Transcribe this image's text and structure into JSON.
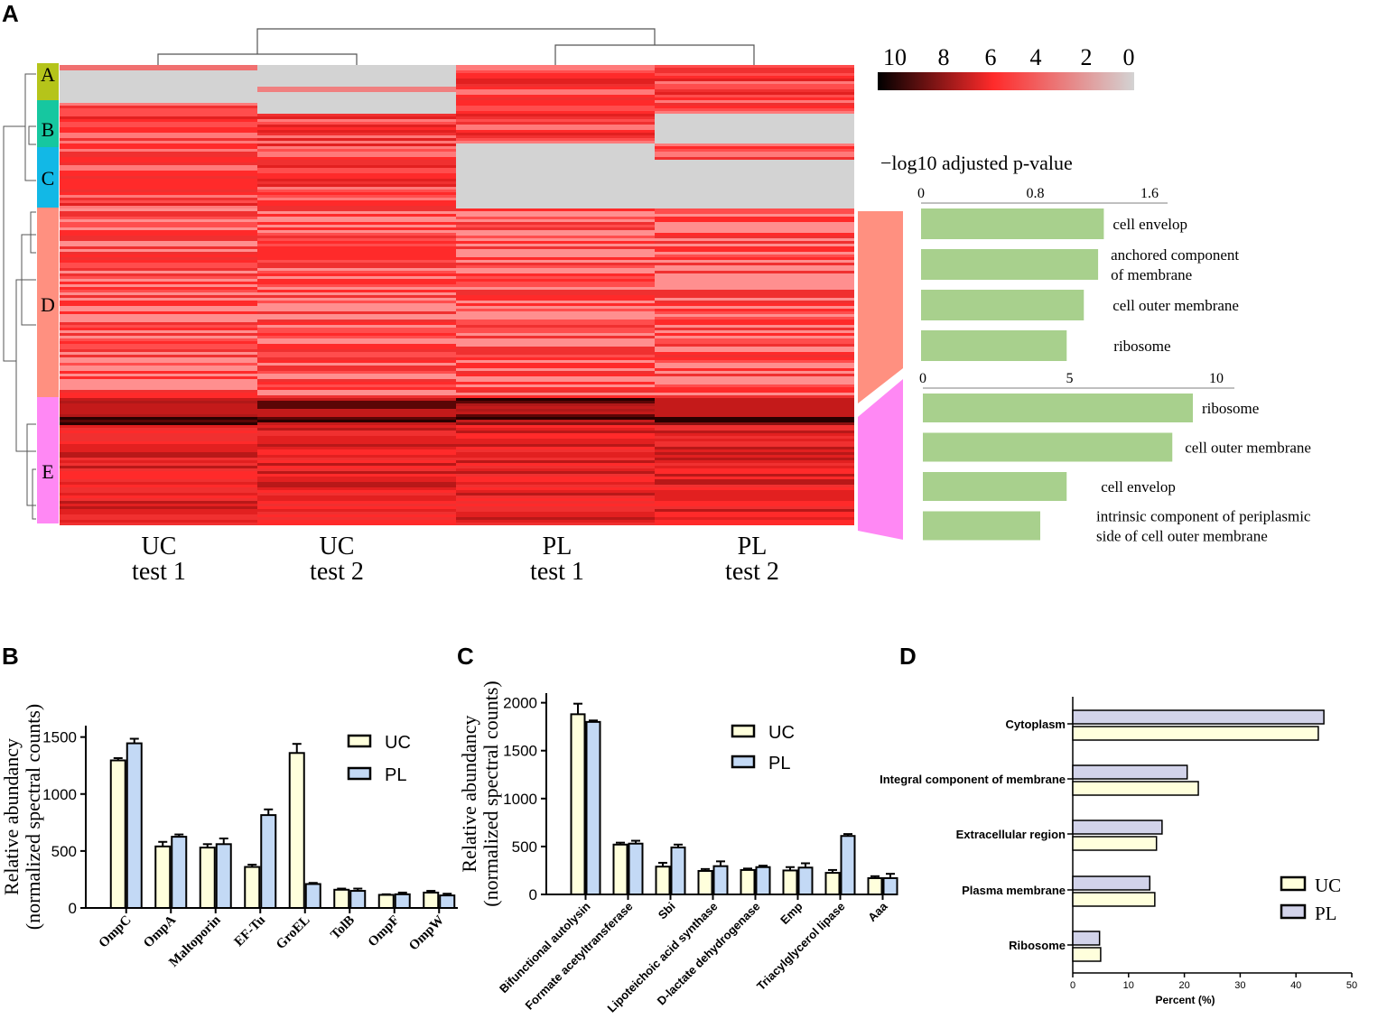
{
  "panel_labels": {
    "a": "A",
    "b": "B",
    "c": "C",
    "d": "D"
  },
  "colors": {
    "heat_dark": "#000000",
    "heat_mid": "#ff2a2a",
    "heat_light": "#d3d3d3",
    "go_bar": "#a8d08d",
    "cluster_A": "#b5c41a",
    "cluster_B": "#16c7a0",
    "cluster_C": "#12b8e6",
    "cluster_D": "#ff9080",
    "cluster_E": "#ff88f4",
    "uc_fill": "#ffffdc",
    "pl_fill_bc": "#c3d9f5",
    "pl_fill_d": "#d2d3ea"
  },
  "chart_data": [
    {
      "id": "A_heatmap",
      "type": "heatmap",
      "columns": [
        {
          "line1": "UC",
          "line2": "test 1"
        },
        {
          "line1": "UC",
          "line2": "test 2"
        },
        {
          "line1": "PL",
          "line2": "test 1"
        },
        {
          "line1": "PL",
          "line2": "test 2"
        }
      ],
      "clusters": [
        "A",
        "B",
        "C",
        "D",
        "E"
      ],
      "colorbar": {
        "ticks": [
          "10",
          "8",
          "6",
          "4",
          "2",
          "0"
        ],
        "range": [
          10,
          0
        ]
      }
    },
    {
      "id": "A_go_top",
      "type": "bar",
      "orientation": "horizontal",
      "title": "−log10 adjusted p-value",
      "tick_labels": [
        "0",
        "0.8",
        "1.6"
      ],
      "xlim": [
        0,
        1.6
      ],
      "categories": [
        "cell envelop",
        "anchored component\nof membrane",
        "cell outer membrane",
        "ribosome"
      ],
      "values": [
        1.28,
        1.24,
        1.14,
        1.02
      ]
    },
    {
      "id": "A_go_bottom",
      "type": "bar",
      "orientation": "horizontal",
      "tick_labels": [
        "0",
        "5",
        "10"
      ],
      "xlim": [
        0,
        10
      ],
      "categories": [
        "ribosome",
        "cell outer membrane",
        "cell envelop",
        "intrinsic component of periplasmic\nside of cell outer membrane"
      ],
      "values": [
        9.2,
        8.5,
        4.9,
        4.0
      ]
    },
    {
      "id": "B",
      "type": "bar",
      "ylabel_line1": "Relative abundancy",
      "ylabel_line2": "(normalized spectral counts)",
      "ylim": [
        0,
        1600
      ],
      "yticks": [
        "0",
        "500",
        "1000",
        "1500"
      ],
      "categories": [
        "OmpC",
        "OmpA",
        "Maltoporin",
        "EF-Tu",
        "GroEL",
        "TolB",
        "OmpF",
        "OmpW"
      ],
      "series": [
        {
          "name": "UC",
          "values": [
            1295,
            540,
            530,
            360,
            1360,
            160,
            115,
            135
          ],
          "errors": [
            20,
            40,
            30,
            20,
            80,
            10,
            5,
            15
          ]
        },
        {
          "name": "PL",
          "values": [
            1445,
            625,
            560,
            815,
            210,
            150,
            120,
            110
          ],
          "errors": [
            40,
            20,
            50,
            50,
            10,
            20,
            15,
            15
          ]
        }
      ]
    },
    {
      "id": "C",
      "type": "bar",
      "ylabel_line1": "Relative abundancy",
      "ylabel_line2": "(normalized spectral counts)",
      "ylim": [
        0,
        2100
      ],
      "yticks": [
        "0",
        "500",
        "1000",
        "1500",
        "2000"
      ],
      "categories": [
        "Bifunctional autolysin",
        "Formate acetyltransferase",
        "Sbi",
        "Lipoteichoic acid synthase",
        "D-lactate dehydrogenase",
        "Emp",
        "Triacylglycerol lipase",
        "Aaa"
      ],
      "series": [
        {
          "name": "UC",
          "values": [
            1880,
            520,
            290,
            245,
            255,
            250,
            225,
            170
          ],
          "errors": [
            110,
            20,
            40,
            20,
            15,
            35,
            30,
            20
          ]
        },
        {
          "name": "PL",
          "values": [
            1800,
            530,
            490,
            295,
            285,
            280,
            610,
            170
          ],
          "errors": [
            15,
            30,
            30,
            50,
            15,
            45,
            20,
            45
          ]
        }
      ]
    },
    {
      "id": "D",
      "type": "bar",
      "orientation": "horizontal",
      "xlabel": "Percent (%)",
      "xlim": [
        0,
        50
      ],
      "xticks": [
        "0",
        "10",
        "20",
        "30",
        "40",
        "50"
      ],
      "categories": [
        "Cytoplasm",
        "Integral component of membrane",
        "Extracellular region",
        "Plasma membrane",
        "Ribosome"
      ],
      "series": [
        {
          "name": "UC",
          "values": [
            44,
            22.5,
            15,
            14.7,
            5
          ]
        },
        {
          "name": "PL",
          "values": [
            45,
            20.5,
            16,
            13.8,
            4.8
          ]
        }
      ]
    }
  ]
}
